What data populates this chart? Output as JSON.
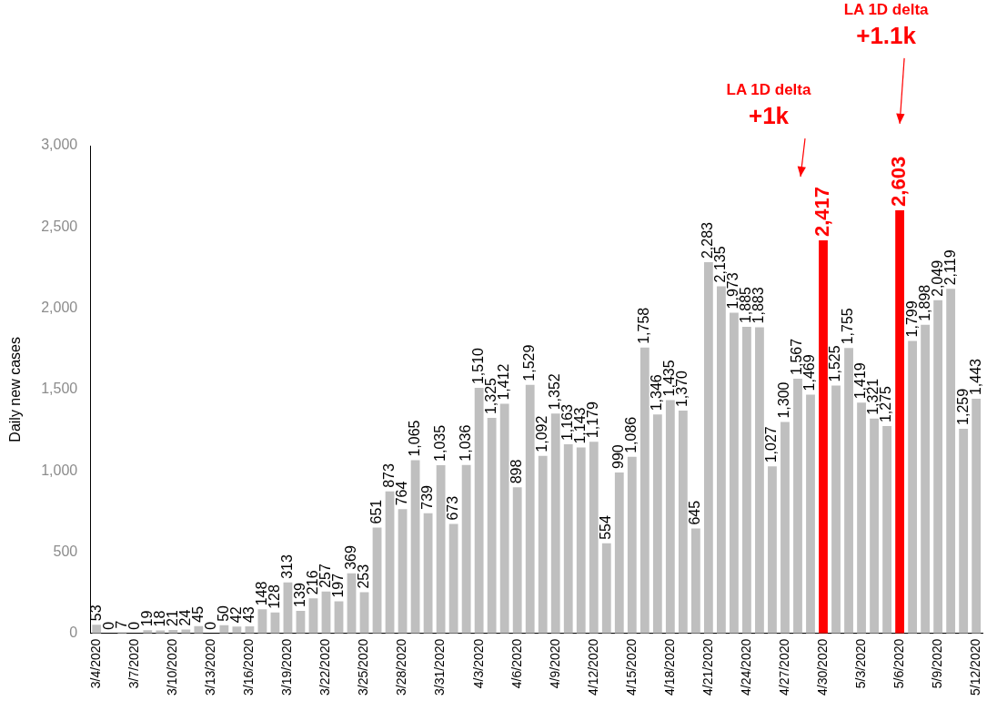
{
  "chart_data": {
    "type": "bar",
    "ylabel": "Daily new cases",
    "categories": [
      "3/4/2020",
      null,
      null,
      "3/7/2020",
      null,
      null,
      "3/10/2020",
      null,
      null,
      "3/13/2020",
      null,
      null,
      "3/16/2020",
      null,
      null,
      "3/19/2020",
      null,
      null,
      "3/22/2020",
      null,
      null,
      "3/25/2020",
      null,
      null,
      "3/28/2020",
      null,
      null,
      "3/31/2020",
      null,
      null,
      "4/3/2020",
      null,
      null,
      "4/6/2020",
      null,
      null,
      "4/9/2020",
      null,
      null,
      "4/12/2020",
      null,
      null,
      "4/15/2020",
      null,
      null,
      "4/18/2020",
      null,
      null,
      "4/21/2020",
      null,
      null,
      "4/24/2020",
      null,
      null,
      "4/27/2020",
      null,
      null,
      "4/30/2020",
      null,
      null,
      "5/3/2020",
      null,
      null,
      "5/6/2020",
      null,
      null,
      "5/9/2020",
      null,
      null,
      "5/12/2020"
    ],
    "values": [
      53,
      0,
      7,
      0,
      19,
      18,
      21,
      24,
      45,
      0,
      50,
      42,
      43,
      148,
      128,
      313,
      139,
      216,
      257,
      197,
      369,
      253,
      651,
      873,
      764,
      1065,
      739,
      1035,
      673,
      1036,
      1510,
      1325,
      1412,
      898,
      1529,
      1092,
      1352,
      1163,
      1143,
      1179,
      554,
      990,
      1086,
      1758,
      1346,
      1435,
      1370,
      645,
      2283,
      2135,
      1973,
      1885,
      1883,
      1027,
      1300,
      1567,
      1469,
      2417,
      1525,
      1755,
      1419,
      1321,
      1275,
      2603,
      1799,
      1898,
      2049,
      2119,
      1259,
      1443
    ],
    "colors": [
      "#bfbfbf",
      "#bfbfbf",
      "#bfbfbf",
      "#bfbfbf",
      "#bfbfbf",
      "#bfbfbf",
      "#bfbfbf",
      "#bfbfbf",
      "#bfbfbf",
      "#bfbfbf",
      "#bfbfbf",
      "#bfbfbf",
      "#bfbfbf",
      "#bfbfbf",
      "#bfbfbf",
      "#bfbfbf",
      "#bfbfbf",
      "#bfbfbf",
      "#bfbfbf",
      "#bfbfbf",
      "#bfbfbf",
      "#bfbfbf",
      "#bfbfbf",
      "#bfbfbf",
      "#bfbfbf",
      "#bfbfbf",
      "#bfbfbf",
      "#bfbfbf",
      "#bfbfbf",
      "#bfbfbf",
      "#bfbfbf",
      "#bfbfbf",
      "#bfbfbf",
      "#bfbfbf",
      "#bfbfbf",
      "#bfbfbf",
      "#bfbfbf",
      "#bfbfbf",
      "#bfbfbf",
      "#bfbfbf",
      "#bfbfbf",
      "#bfbfbf",
      "#bfbfbf",
      "#bfbfbf",
      "#bfbfbf",
      "#bfbfbf",
      "#bfbfbf",
      "#bfbfbf",
      "#bfbfbf",
      "#bfbfbf",
      "#bfbfbf",
      "#bfbfbf",
      "#bfbfbf",
      "#bfbfbf",
      "#bfbfbf",
      "#bfbfbf",
      "#bfbfbf",
      "#ff0000",
      "#bfbfbf",
      "#bfbfbf",
      "#bfbfbf",
      "#bfbfbf",
      "#bfbfbf",
      "#ff0000",
      "#bfbfbf",
      "#bfbfbf",
      "#bfbfbf",
      "#bfbfbf",
      "#bfbfbf",
      "#bfbfbf"
    ],
    "value_labels": [
      "53",
      "0",
      "7",
      "0",
      "19",
      "18",
      "21",
      "24",
      "45",
      "0",
      "50",
      "42",
      "43",
      "148",
      "128",
      "313",
      "139",
      "216",
      "257",
      "197",
      "369",
      "253",
      "651",
      "873",
      "764",
      "1,065",
      "739",
      "1,035",
      "673",
      "1,036",
      "1,510",
      "1,325",
      "1,412",
      "898",
      "1,529",
      "1,092",
      "1,352",
      "1,163",
      "1,143",
      "1,179",
      "554",
      "990",
      "1,086",
      "1,758",
      "1,346",
      "1,435",
      "1,370",
      "645",
      "2,283",
      "2,135",
      "1,973",
      "1,885",
      "1,883",
      "1,027",
      "1,300",
      "1,567",
      "1,469",
      "2,417",
      "1,525",
      "1,755",
      "1,419",
      "1,321",
      "1,275",
      "2,603",
      "1,799",
      "1,898",
      "2,049",
      "2,119",
      "1,259",
      "1,443"
    ],
    "ylim": [
      0,
      3000
    ],
    "yticks": [
      0,
      500,
      {
        "value": 1000,
        "label": "1,000"
      },
      {
        "value": 1500,
        "label": "1,500"
      },
      {
        "value": 2000,
        "label": "2,000"
      },
      {
        "value": 2500,
        "label": "2,500"
      },
      {
        "value": 3000,
        "label": "3,000"
      }
    ],
    "grid": false,
    "annotations": [
      "LA 1D delta\n+1k",
      "LA 1D delta\n+1.1k"
    ]
  }
}
